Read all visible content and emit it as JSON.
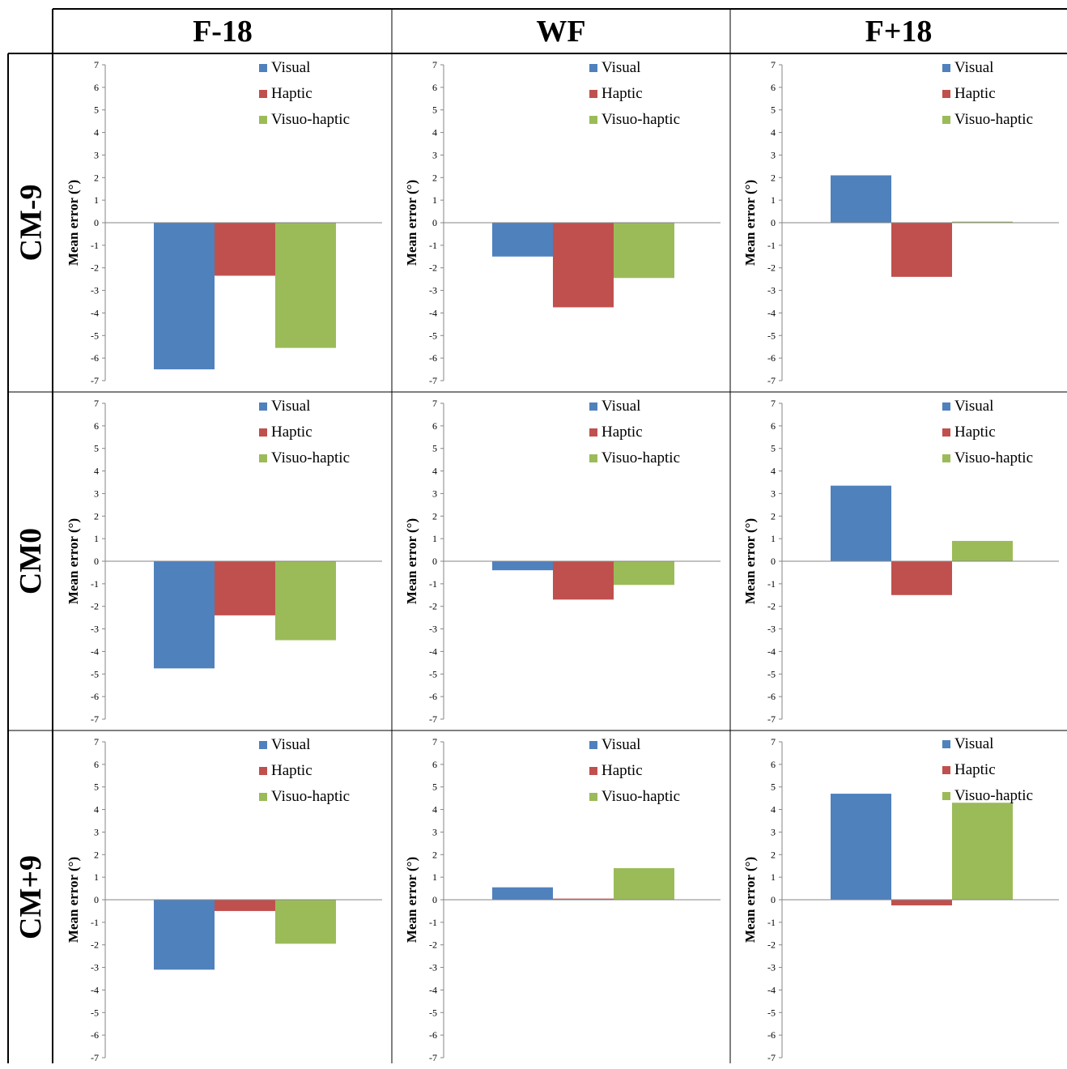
{
  "columns": [
    "F-18",
    "WF",
    "F+18"
  ],
  "rows": [
    "CM-9",
    "CM0",
    "CM+9"
  ],
  "colors": {
    "Visual": "#4f81bd",
    "Haptic": "#c0504d",
    "Visuo-haptic": "#9bbb59"
  },
  "chart_data": [
    {
      "type": "bar",
      "row": "CM-9",
      "column": "F-18",
      "ylabel": "Mean error (°)",
      "ylim": [
        -7,
        7
      ],
      "yticks": [
        7,
        6,
        5,
        4,
        3,
        2,
        1,
        0,
        -1,
        -2,
        -3,
        -4,
        -5,
        -6,
        -7
      ],
      "legend_position": "top-right",
      "series": [
        {
          "name": "Visual",
          "values": [
            -6.5
          ]
        },
        {
          "name": "Haptic",
          "values": [
            -2.35
          ]
        },
        {
          "name": "Visuo-haptic",
          "values": [
            -5.55
          ]
        }
      ]
    },
    {
      "type": "bar",
      "row": "CM-9",
      "column": "WF",
      "ylabel": "Mean error (°)",
      "ylim": [
        -7,
        7
      ],
      "yticks": [
        7,
        6,
        5,
        4,
        3,
        2,
        1,
        0,
        -1,
        -2,
        -3,
        -4,
        -5,
        -6,
        -7
      ],
      "legend_position": "top-right",
      "series": [
        {
          "name": "Visual",
          "values": [
            -1.5
          ]
        },
        {
          "name": "Haptic",
          "values": [
            -3.75
          ]
        },
        {
          "name": "Visuo-haptic",
          "values": [
            -2.45
          ]
        }
      ]
    },
    {
      "type": "bar",
      "row": "CM-9",
      "column": "F+18",
      "ylabel": "Mean error (°)",
      "ylim": [
        -7,
        7
      ],
      "yticks": [
        7,
        6,
        5,
        4,
        3,
        2,
        1,
        0,
        -1,
        -2,
        -3,
        -4,
        -5,
        -6,
        -7
      ],
      "legend_position": "top-right",
      "series": [
        {
          "name": "Visual",
          "values": [
            2.1
          ]
        },
        {
          "name": "Haptic",
          "values": [
            -2.4
          ]
        },
        {
          "name": "Visuo-haptic",
          "values": [
            0.05
          ]
        }
      ]
    },
    {
      "type": "bar",
      "row": "CM0",
      "column": "F-18",
      "ylabel": "Mean error (°)",
      "ylim": [
        -7,
        7
      ],
      "yticks": [
        7,
        6,
        5,
        4,
        3,
        2,
        1,
        0,
        -1,
        -2,
        -3,
        -4,
        -5,
        -6,
        -7
      ],
      "legend_position": "top-right",
      "series": [
        {
          "name": "Visual",
          "values": [
            -4.75
          ]
        },
        {
          "name": "Haptic",
          "values": [
            -2.4
          ]
        },
        {
          "name": "Visuo-haptic",
          "values": [
            -3.5
          ]
        }
      ]
    },
    {
      "type": "bar",
      "row": "CM0",
      "column": "WF",
      "ylabel": "Mean error (°)",
      "ylim": [
        -7,
        7
      ],
      "yticks": [
        7,
        6,
        5,
        4,
        3,
        2,
        1,
        0,
        -1,
        -2,
        -3,
        -4,
        -5,
        -6,
        -7
      ],
      "legend_position": "top-right",
      "series": [
        {
          "name": "Visual",
          "values": [
            -0.4
          ]
        },
        {
          "name": "Haptic",
          "values": [
            -1.7
          ]
        },
        {
          "name": "Visuo-haptic",
          "values": [
            -1.05
          ]
        }
      ]
    },
    {
      "type": "bar",
      "row": "CM0",
      "column": "F+18",
      "ylabel": "Mean error (°)",
      "ylim": [
        -7,
        7
      ],
      "yticks": [
        7,
        6,
        5,
        4,
        3,
        2,
        1,
        0,
        -1,
        -2,
        -3,
        -4,
        -5,
        -6,
        -7
      ],
      "legend_position": "top-right",
      "series": [
        {
          "name": "Visual",
          "values": [
            3.35
          ]
        },
        {
          "name": "Haptic",
          "values": [
            -1.5
          ]
        },
        {
          "name": "Visuo-haptic",
          "values": [
            0.9
          ]
        }
      ]
    },
    {
      "type": "bar",
      "row": "CM+9",
      "column": "F-18",
      "ylabel": "Mean error (°)",
      "ylim": [
        -7,
        7
      ],
      "yticks": [
        7,
        6,
        5,
        4,
        3,
        2,
        1,
        0,
        -1,
        -2,
        -3,
        -4,
        -5,
        -6,
        -7
      ],
      "legend_position": "top-right",
      "series": [
        {
          "name": "Visual",
          "values": [
            -3.1
          ]
        },
        {
          "name": "Haptic",
          "values": [
            -0.5
          ]
        },
        {
          "name": "Visuo-haptic",
          "values": [
            -1.95
          ]
        }
      ]
    },
    {
      "type": "bar",
      "row": "CM+9",
      "column": "WF",
      "ylabel": "Mean error (°)",
      "ylim": [
        -7,
        7
      ],
      "yticks": [
        7,
        6,
        5,
        4,
        3,
        2,
        1,
        0,
        -1,
        -2,
        -3,
        -4,
        -5,
        -6,
        -7
      ],
      "legend_position": "top-right",
      "series": [
        {
          "name": "Visual",
          "values": [
            0.55
          ]
        },
        {
          "name": "Haptic",
          "values": [
            0.05
          ]
        },
        {
          "name": "Visuo-haptic",
          "values": [
            1.4
          ]
        }
      ]
    },
    {
      "type": "bar",
      "row": "CM+9",
      "column": "F+18",
      "ylabel": "Mean error (°)",
      "ylim": [
        -7,
        7
      ],
      "yticks": [
        7,
        6,
        5,
        4,
        3,
        2,
        1,
        0,
        -1,
        -2,
        -3,
        -4,
        -5,
        -6,
        -7
      ],
      "legend_position": "top-right",
      "series": [
        {
          "name": "Visual",
          "values": [
            4.7
          ]
        },
        {
          "name": "Haptic",
          "values": [
            -0.25
          ]
        },
        {
          "name": "Visuo-haptic",
          "values": [
            4.3
          ]
        }
      ]
    }
  ]
}
